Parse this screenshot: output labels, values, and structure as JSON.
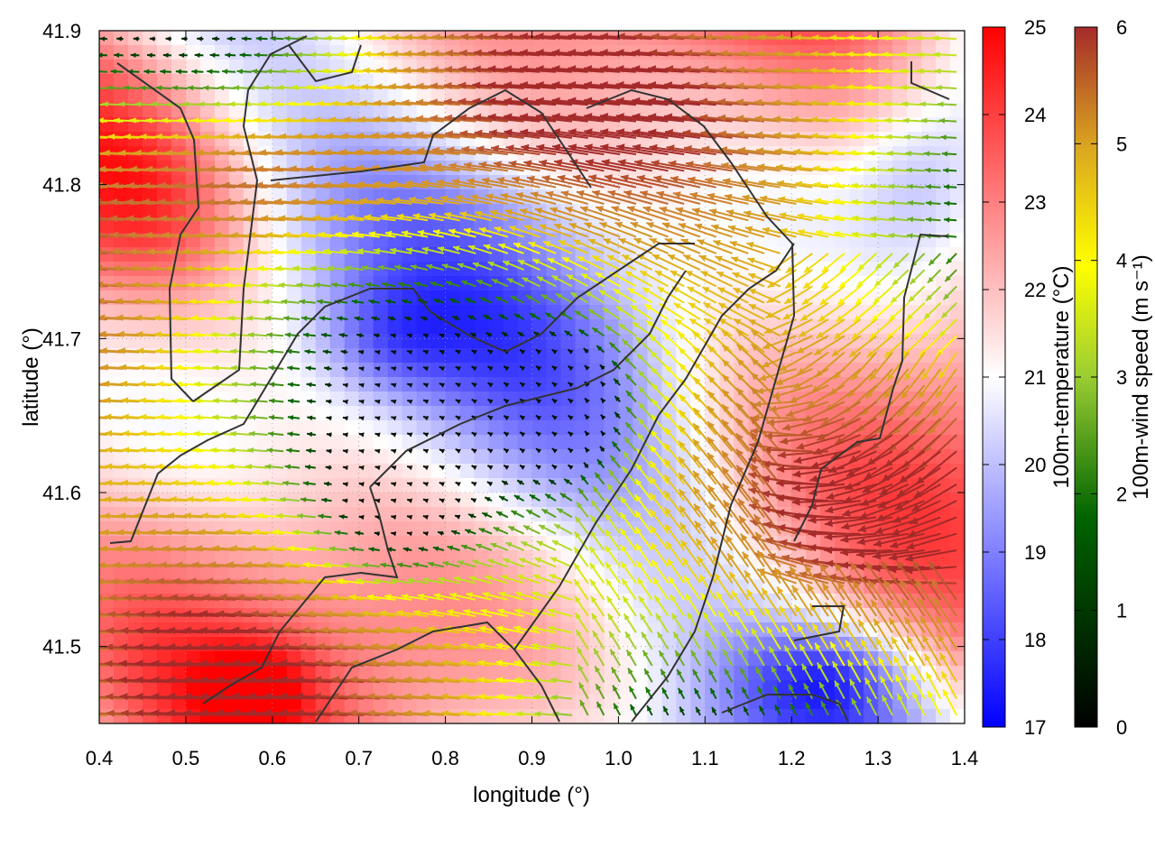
{
  "chart_data": {
    "type": "heatmap",
    "xlabel": "longitude (°)",
    "ylabel": "latitude (°)",
    "xlim": [
      0.4,
      1.4
    ],
    "ylim": [
      41.45,
      41.9
    ],
    "x_ticks": [
      "0.4",
      "0.5",
      "0.6",
      "0.7",
      "0.8",
      "0.9",
      "1.0",
      "1.1",
      "1.2",
      "1.3",
      "1.4"
    ],
    "y_ticks": [
      "41.5",
      "41.6",
      "41.7",
      "41.8",
      "41.9"
    ],
    "x_tick_values": [
      0.4,
      0.5,
      0.6,
      0.7,
      0.8,
      0.9,
      1.0,
      1.1,
      1.2,
      1.3,
      1.4
    ],
    "y_tick_values": [
      41.5,
      41.6,
      41.7,
      41.8,
      41.9
    ],
    "temperature_colorbar": {
      "label": "100m-temperature (°C)",
      "range": [
        17,
        25
      ],
      "ticks": [
        "17",
        "18",
        "19",
        "20",
        "21",
        "22",
        "23",
        "24",
        "25"
      ],
      "tick_values": [
        17,
        18,
        19,
        20,
        21,
        22,
        23,
        24,
        25
      ],
      "colors": [
        "#0000ff",
        "#ffffff",
        "#ff0000"
      ]
    },
    "wind_colorbar": {
      "label": "100m-wind speed (m s⁻¹)",
      "range": [
        0,
        6
      ],
      "ticks": [
        "0",
        "1",
        "2",
        "3",
        "4",
        "5",
        "6"
      ],
      "tick_values": [
        0,
        1,
        2,
        3,
        4,
        5,
        6
      ],
      "colors": [
        "#000000",
        "#006400",
        "#9acd32",
        "#ffff00",
        "#daa520",
        "#cd7f32",
        "#a52a2a"
      ]
    },
    "grid": true,
    "coastline_color": "#333333"
  }
}
